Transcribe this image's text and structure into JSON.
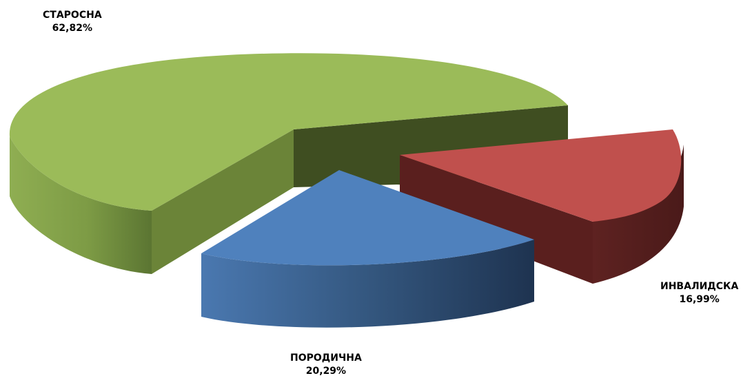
{
  "chart_data": {
    "type": "pie",
    "style": "3d-exploded",
    "title": "",
    "slices": [
      {
        "label": "СТАРОСНА",
        "value": 62.82,
        "value_text": "62,82%",
        "color": "#9BBB59"
      },
      {
        "label": "ИНВАЛИДСКА",
        "value": 16.99,
        "value_text": "16,99%",
        "color": "#C0504D"
      },
      {
        "label": "ПОРОДИЧНА",
        "value": 20.29,
        "value_text": "20,29%",
        "color": "#4F81BD"
      }
    ],
    "legend": "none"
  }
}
